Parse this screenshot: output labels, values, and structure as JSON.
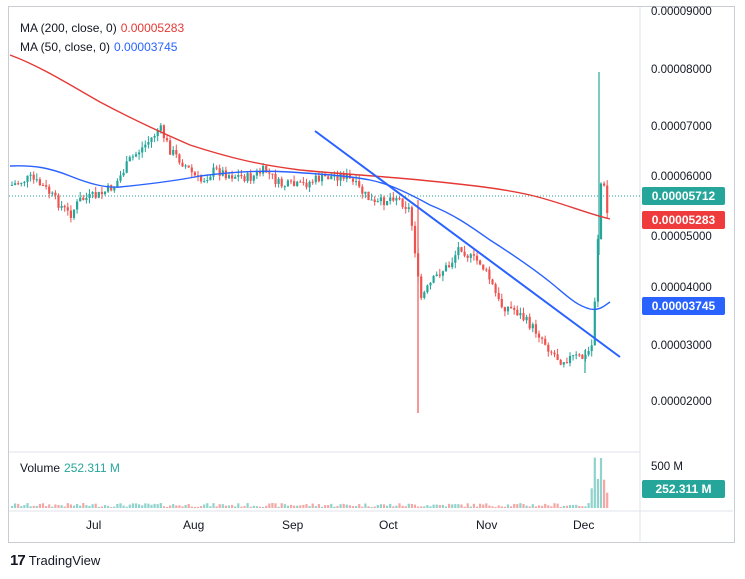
{
  "legend": {
    "ma200_label": "MA (200, close, 0)",
    "ma200_value": "0.00005283",
    "ma50_label": "MA (50, close, 0)",
    "ma50_value": "0.00003745"
  },
  "price_axis": {
    "ticks": [
      "0.00009000",
      "0.00008000",
      "0.00007000",
      "0.00006000",
      "0.00005000",
      "0.00004000",
      "0.00003000",
      "0.00002000"
    ],
    "current_price_tag": "0.00005712",
    "ma200_tag": "0.00005283",
    "ma50_tag": "0.00003745"
  },
  "volume": {
    "label": "Volume",
    "value": "252.311 M",
    "axis_tick": "500 M",
    "tag": "252.311 M"
  },
  "time_axis": [
    "Jul",
    "Aug",
    "Sep",
    "Oct",
    "Nov",
    "Dec"
  ],
  "footer": {
    "brand": "TradingView",
    "logo_text": "17"
  },
  "colors": {
    "up": "#26a69a",
    "down": "#ef5350",
    "ma200": "#e53935",
    "ma50": "#2962ff",
    "trendline": "#2962ff"
  },
  "chart_data": {
    "type": "candlestick",
    "price_ylim": [
      1.5e-05,
      9e-05
    ],
    "current_price": 5.712e-05,
    "series": [
      {
        "name": "MA (200, close, 0)",
        "last": 5.283e-05
      },
      {
        "name": "MA (50, close, 0)",
        "last": 3.745e-05
      }
    ],
    "trendline": {
      "from_price": 6.88e-05,
      "to_price": 2.83e-05
    },
    "notable": {
      "low_wick": 1.75e-05,
      "spike_high": 8e-05,
      "drop_low": 2.6e-05
    }
  }
}
